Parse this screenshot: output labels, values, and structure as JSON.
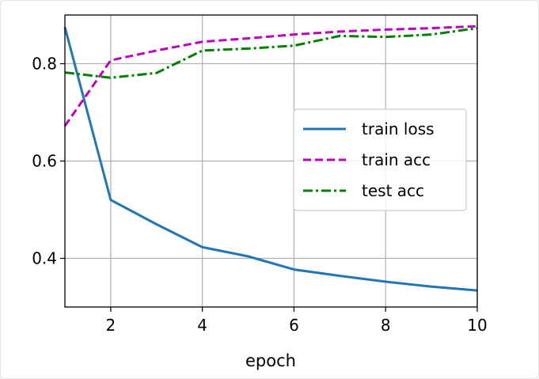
{
  "chart_data": {
    "type": "line",
    "xlabel": "epoch",
    "ylabel": "",
    "title": "",
    "xlim": [
      1,
      10
    ],
    "ylim": [
      0.3,
      0.9
    ],
    "x_ticks": [
      2,
      4,
      6,
      8,
      10
    ],
    "y_ticks": [
      0.4,
      0.6,
      0.8
    ],
    "x_tick_labels": [
      "2",
      "4",
      "6",
      "8",
      "10"
    ],
    "y_tick_labels": [
      "0.4",
      "0.6",
      "0.8"
    ],
    "grid": true,
    "legend_position": "center-right",
    "x": [
      1,
      2,
      3,
      4,
      5,
      6,
      7,
      8,
      9,
      10
    ],
    "series": [
      {
        "name": "train loss",
        "color": "#1f77b4",
        "style": "solid",
        "values": [
          0.875,
          0.52,
          0.47,
          0.423,
          0.404,
          0.377,
          0.364,
          0.352,
          0.342,
          0.334
        ]
      },
      {
        "name": "train acc",
        "color": "#bf00bf",
        "style": "dashed",
        "values": [
          0.672,
          0.807,
          0.827,
          0.845,
          0.852,
          0.86,
          0.866,
          0.87,
          0.873,
          0.877
        ]
      },
      {
        "name": "test acc",
        "color": "#008000",
        "style": "dashdot",
        "values": [
          0.782,
          0.771,
          0.781,
          0.827,
          0.831,
          0.837,
          0.857,
          0.855,
          0.86,
          0.873
        ]
      }
    ]
  }
}
